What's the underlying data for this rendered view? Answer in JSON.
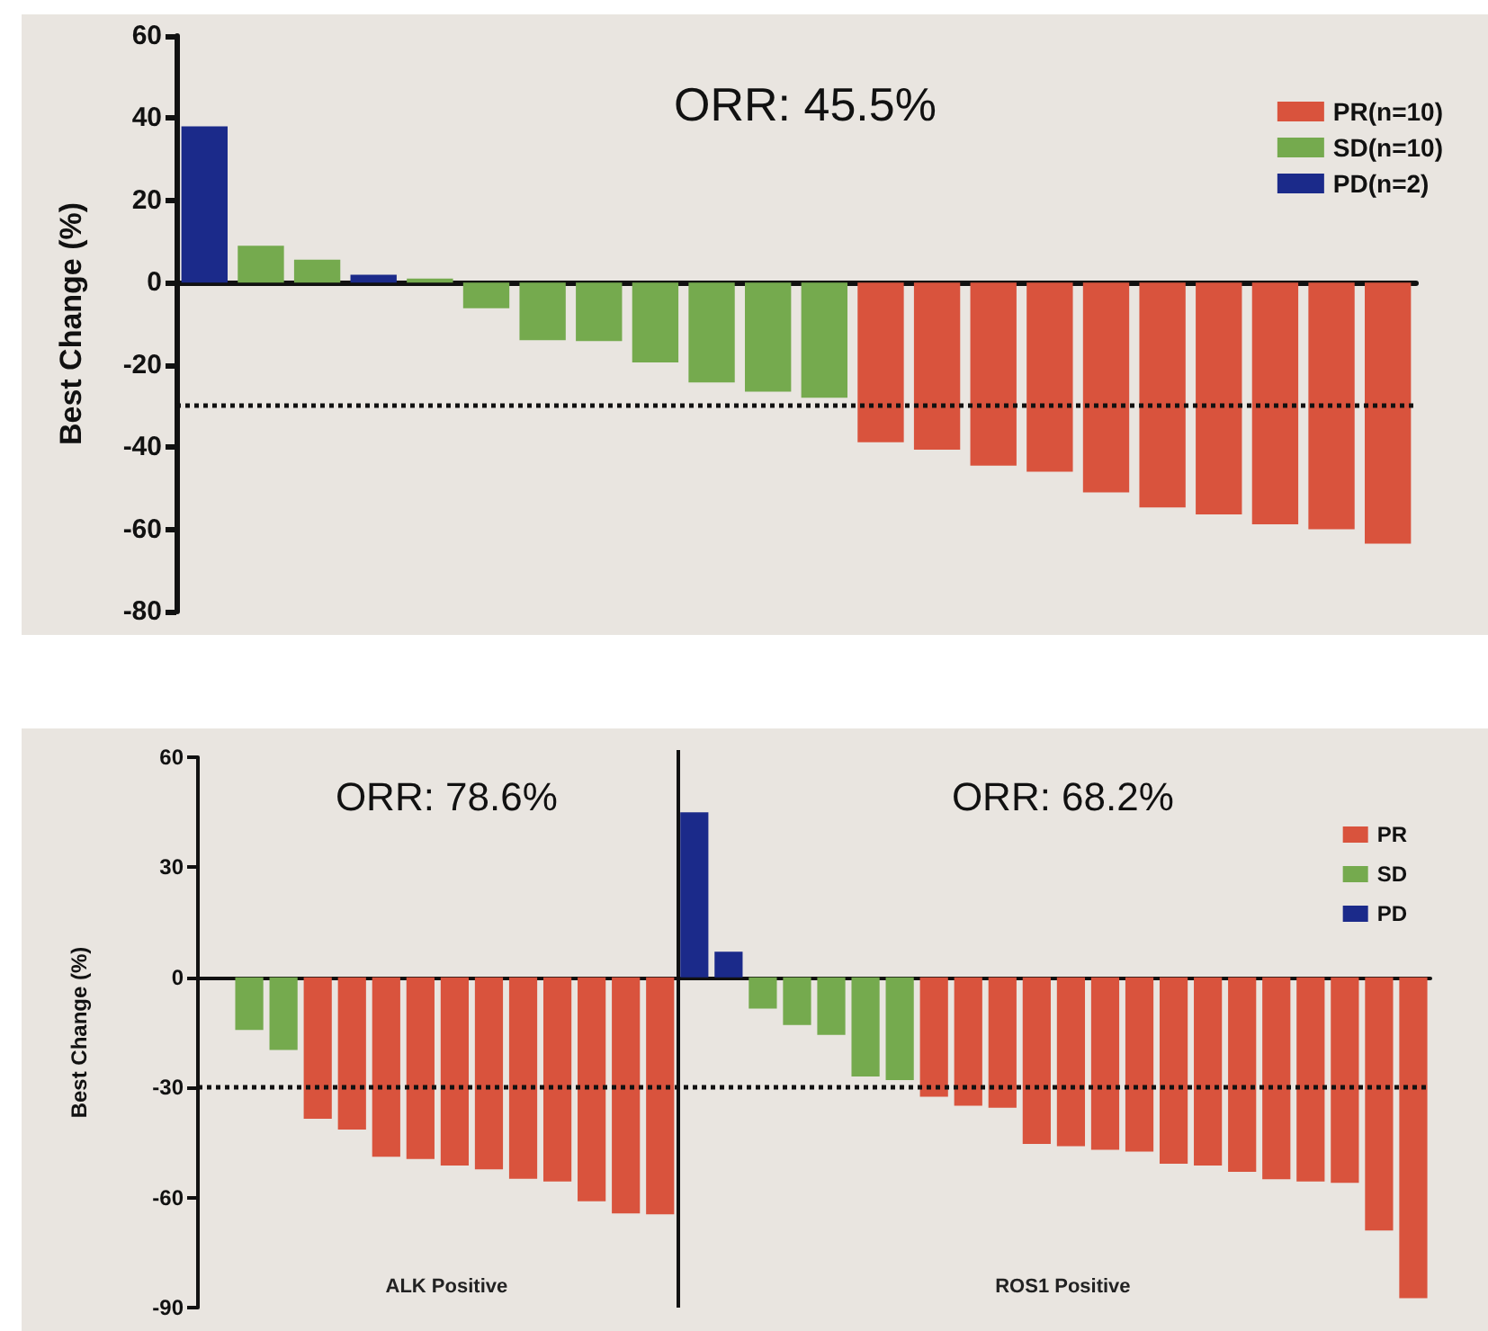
{
  "chart_data": [
    {
      "type": "bar",
      "title": "ORR: 45.5%",
      "ylabel": "Best Change (%)",
      "stacked": true,
      "legend": "top right",
      "tick_labels": "y",
      "categories": [
        null,
        null,
        null,
        null,
        null,
        null,
        null,
        null,
        null,
        null,
        null,
        null,
        null,
        null,
        null,
        null,
        null,
        null,
        null,
        null,
        null,
        null
      ],
      "series": [
        {
          "name": "PR(n=10)",
          "color": "#d9533d",
          "values": [
            null,
            null,
            null,
            null,
            null,
            null,
            null,
            null,
            null,
            null,
            null,
            null,
            -38.8,
            -40.6,
            -44.5,
            -46,
            -51,
            -54.7,
            -56.4,
            -58.8,
            -60,
            -63.5
          ]
        },
        {
          "name": "SD(n=10)",
          "color": "#75aa4e",
          "values": [
            null,
            9,
            5.6,
            null,
            1,
            -6.2,
            -14,
            -14.2,
            -19.4,
            -24.3,
            -26.5,
            -28,
            null,
            null,
            null,
            null,
            null,
            null,
            null,
            null,
            null,
            null
          ]
        },
        {
          "name": "PD(n=2)",
          "color": "#1b2a8a",
          "values": [
            38,
            null,
            null,
            1.9,
            null,
            null,
            null,
            null,
            null,
            null,
            null,
            null,
            null,
            null,
            null,
            null,
            null,
            null,
            null,
            null,
            null,
            null
          ]
        }
      ],
      "ylim": [
        -80,
        60
      ],
      "yticks": [
        -80,
        -60,
        -40,
        -20,
        0,
        20,
        40,
        60
      ],
      "ref_lines": [
        {
          "axis": "y",
          "value": -30,
          "line_style": "dotted",
          "color": "#111111"
        }
      ]
    },
    {
      "type": "bar",
      "title": "ORR: 78.6%",
      "xlabel": "ALK Positive",
      "ylabel": "Best Change (%)",
      "stacked": true,
      "legend": "top right",
      "tick_labels": "y",
      "annotations": [
        "ORR: 68.2%",
        "ROS1 Positive"
      ],
      "categories": [
        null,
        null,
        null,
        null,
        null,
        null,
        null,
        null,
        null,
        null,
        null,
        null,
        null,
        null,
        null,
        null,
        null,
        null,
        null,
        null,
        null,
        null,
        null,
        null,
        null,
        null,
        null,
        null,
        null,
        null,
        null,
        null,
        null,
        null,
        null,
        null
      ],
      "series": [
        {
          "name": "PR",
          "color": "#d9533d",
          "values": [
            null,
            null,
            null,
            -38.5,
            -41.5,
            -48.9,
            -49.5,
            -51.3,
            -52.3,
            -54.9,
            -55.6,
            -61,
            -64.3,
            -64.6,
            null,
            null,
            null,
            null,
            null,
            null,
            null,
            -32.5,
            -35,
            -35.5,
            -45.4,
            -46,
            -47,
            -47.5,
            -50.8,
            -51.3,
            -53,
            -55,
            -55.6,
            -56,
            -69,
            -87.4
          ]
        },
        {
          "name": "SD",
          "color": "#75aa4e",
          "values": [
            null,
            -14.3,
            -19.8,
            null,
            null,
            null,
            null,
            null,
            null,
            null,
            null,
            null,
            null,
            null,
            null,
            null,
            -8.5,
            -13,
            -15.7,
            -27,
            -28,
            null,
            null,
            null,
            null,
            null,
            null,
            null,
            null,
            null,
            null,
            null,
            null,
            null,
            null,
            null
          ]
        },
        {
          "name": "PD",
          "color": "#1b2a8a",
          "values": [
            null,
            null,
            null,
            null,
            null,
            null,
            null,
            null,
            null,
            null,
            null,
            null,
            null,
            null,
            45,
            7,
            null,
            null,
            null,
            null,
            null,
            null,
            null,
            null,
            null,
            null,
            null,
            null,
            null,
            null,
            null,
            null,
            null,
            null,
            null,
            null
          ]
        }
      ],
      "ylim": [
        -90,
        60
      ],
      "yticks": [
        -90,
        -60,
        -30,
        0,
        30,
        60
      ],
      "ref_lines": [
        {
          "axis": "y",
          "value": -30,
          "line_style": "dotted",
          "color": "#111111"
        }
      ]
    }
  ]
}
